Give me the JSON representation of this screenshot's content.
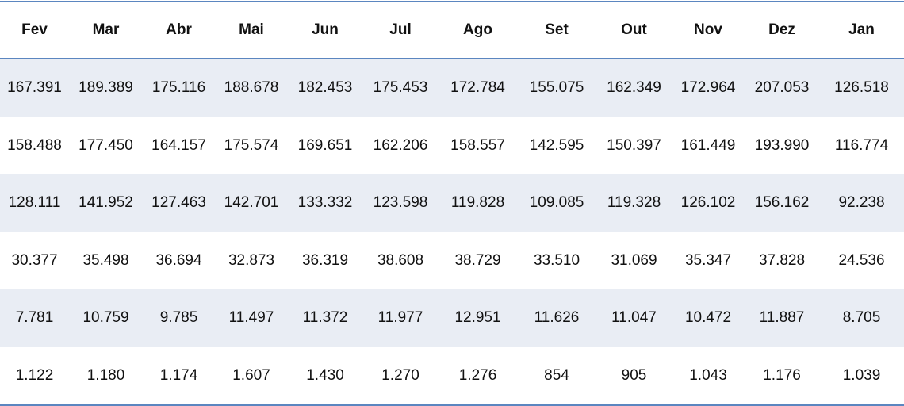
{
  "table": {
    "headers": [
      "Fev",
      "Mar",
      "Abr",
      "Mai",
      "Jun",
      "Jul",
      "Ago",
      "Set",
      "Out",
      "Nov",
      "Dez",
      "Jan"
    ],
    "rows": [
      [
        "167.391",
        "189.389",
        "175.116",
        "188.678",
        "182.453",
        "175.453",
        "172.784",
        "155.075",
        "162.349",
        "172.964",
        "207.053",
        "126.518"
      ],
      [
        "158.488",
        "177.450",
        "164.157",
        "175.574",
        "169.651",
        "162.206",
        "158.557",
        "142.595",
        "150.397",
        "161.449",
        "193.990",
        "116.774"
      ],
      [
        "128.111",
        "141.952",
        "127.463",
        "142.701",
        "133.332",
        "123.598",
        "119.828",
        "109.085",
        "119.328",
        "126.102",
        "156.162",
        "92.238"
      ],
      [
        "30.377",
        "35.498",
        "36.694",
        "32.873",
        "36.319",
        "38.608",
        "38.729",
        "33.510",
        "31.069",
        "35.347",
        "37.828",
        "24.536"
      ],
      [
        "7.781",
        "10.759",
        "9.785",
        "11.497",
        "11.372",
        "11.977",
        "12.951",
        "11.626",
        "11.047",
        "10.472",
        "11.887",
        "8.705"
      ],
      [
        "1.122",
        "1.180",
        "1.174",
        "1.607",
        "1.430",
        "1.270",
        "1.276",
        "854",
        "905",
        "1.043",
        "1.176",
        "1.039"
      ]
    ],
    "colors": {
      "border": "#5b86c0",
      "band": "#e9edf4"
    }
  }
}
